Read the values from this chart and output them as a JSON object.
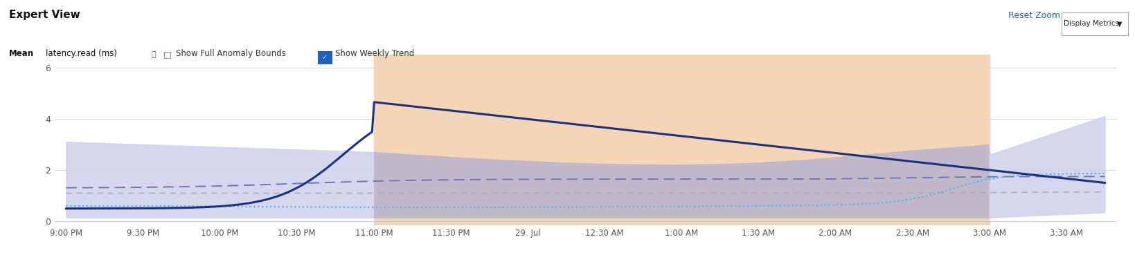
{
  "title": "Expert View",
  "background_color": "#ffffff",
  "anomaly_color": "#f5d5b5",
  "weekly_band_color": "#c8cce8",
  "overlap_color": "#b8afc0",
  "current_line_color": "#1a3080",
  "week1_line_color": "#6878c0",
  "gray_line_color": "#aaaaaa",
  "week2_line_color": "#40b8f0",
  "grid_color": "#d8d8d8",
  "x_tick_labels": [
    "9:00 PM",
    "9:30 PM",
    "10:00 PM",
    "10:30 PM",
    "11:00 PM",
    "11:30 PM",
    "29. Jul",
    "12:30 AM",
    "1:00 AM",
    "1:30 AM",
    "2:00 AM",
    "2:30 AM",
    "3:00 AM",
    "3:30 AM"
  ],
  "y_ticks": [
    0,
    2,
    4,
    6
  ],
  "ylim": [
    -0.15,
    6.5
  ],
  "anomaly_start": 8,
  "anomaly_end": 24,
  "weekly_band_end": 26,
  "xlim_min": -0.3,
  "xlim_max": 27.3
}
